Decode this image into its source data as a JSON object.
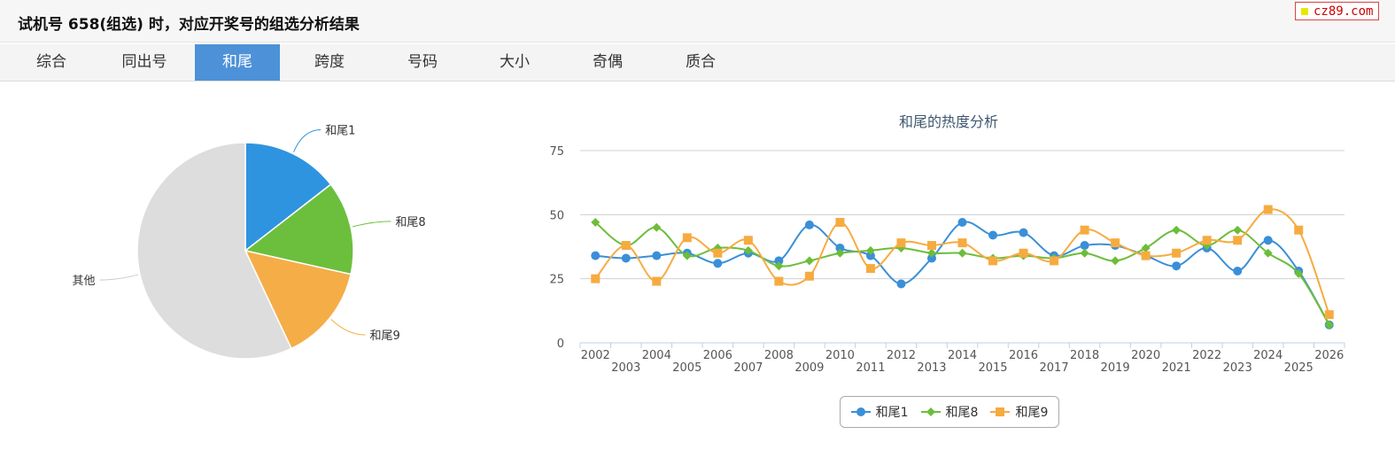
{
  "header": {
    "title": "试机号 658(组选) 时，对应开奖号的组选分析结果"
  },
  "watermark": {
    "text": "cz89.com"
  },
  "tabs": [
    {
      "label": "综合",
      "active": false
    },
    {
      "label": "同出号",
      "active": false
    },
    {
      "label": "和尾",
      "active": true
    },
    {
      "label": "跨度",
      "active": false
    },
    {
      "label": "号码",
      "active": false
    },
    {
      "label": "大小",
      "active": false
    },
    {
      "label": "奇偶",
      "active": false
    },
    {
      "label": "质合",
      "active": false
    }
  ],
  "colors": {
    "accent": "#4d91d8",
    "s1": "#3a8fd8",
    "s2": "#6cbd3a",
    "s3": "#f6ab40",
    "other": "#dddddd"
  },
  "chart_data": [
    {
      "type": "pie",
      "title": "",
      "slices": [
        {
          "label": "和尾1",
          "value": 14.5,
          "color": "#2f94df"
        },
        {
          "label": "和尾8",
          "value": 14.0,
          "color": "#6cbf3d"
        },
        {
          "label": "和尾9",
          "value": 14.5,
          "color": "#f5ad47"
        },
        {
          "label": "其他",
          "value": 57.0,
          "color": "#dddddd"
        }
      ]
    },
    {
      "type": "line",
      "title": "和尾的热度分析",
      "xlabel": "",
      "ylabel": "",
      "ylim": [
        0,
        75
      ],
      "yticks": [
        0,
        25,
        50,
        75
      ],
      "x": [
        "2002",
        "2003",
        "2004",
        "2005",
        "2006",
        "2007",
        "2008",
        "2009",
        "2010",
        "2011",
        "2012",
        "2013",
        "2014",
        "2015",
        "2016",
        "2017",
        "2018",
        "2019",
        "2020",
        "2021",
        "2022",
        "2023",
        "2024",
        "2025",
        "2026"
      ],
      "series": [
        {
          "name": "和尾1",
          "marker": "circle",
          "color": "#3a8fd8",
          "values": [
            34,
            33,
            34,
            35,
            31,
            35,
            32,
            46,
            37,
            34,
            23,
            33,
            47,
            42,
            43,
            34,
            38,
            38,
            34,
            30,
            37,
            28,
            40,
            28,
            7
          ]
        },
        {
          "name": "和尾8",
          "marker": "diamond",
          "color": "#6cbd3a",
          "values": [
            47,
            38,
            45,
            34,
            37,
            36,
            30,
            32,
            35,
            36,
            37,
            35,
            35,
            33,
            34,
            33,
            35,
            32,
            37,
            44,
            38,
            44,
            35,
            27,
            7
          ]
        },
        {
          "name": "和尾9",
          "marker": "square",
          "color": "#f6ab40",
          "values": [
            25,
            38,
            24,
            41,
            35,
            40,
            24,
            26,
            47,
            29,
            39,
            38,
            39,
            32,
            35,
            32,
            44,
            39,
            34,
            35,
            40,
            40,
            52,
            44,
            11
          ]
        }
      ],
      "legend": "bottom-center"
    }
  ]
}
